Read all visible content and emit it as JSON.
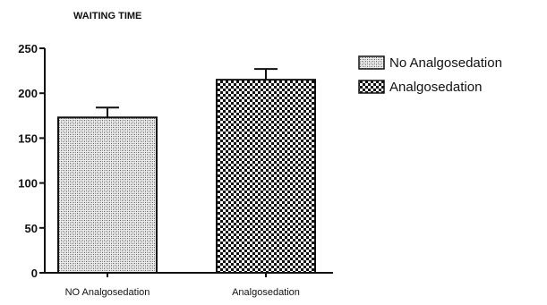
{
  "chart_data": {
    "type": "bar",
    "title": "WAITING TIME",
    "categories": [
      "NO Analgosedation",
      "Analgosedation"
    ],
    "values": [
      173,
      215
    ],
    "errors": [
      11,
      12
    ],
    "ylim": [
      0,
      250
    ],
    "yticks": [
      0,
      50,
      100,
      150,
      200,
      250
    ],
    "xlabel": "",
    "ylabel": "",
    "grid": false,
    "legend": {
      "position": "top-right",
      "entries": [
        {
          "label": "No Analgosedation",
          "pattern": "fine-stipple"
        },
        {
          "label": "Analgosedation",
          "pattern": "checkerboard"
        }
      ]
    }
  }
}
